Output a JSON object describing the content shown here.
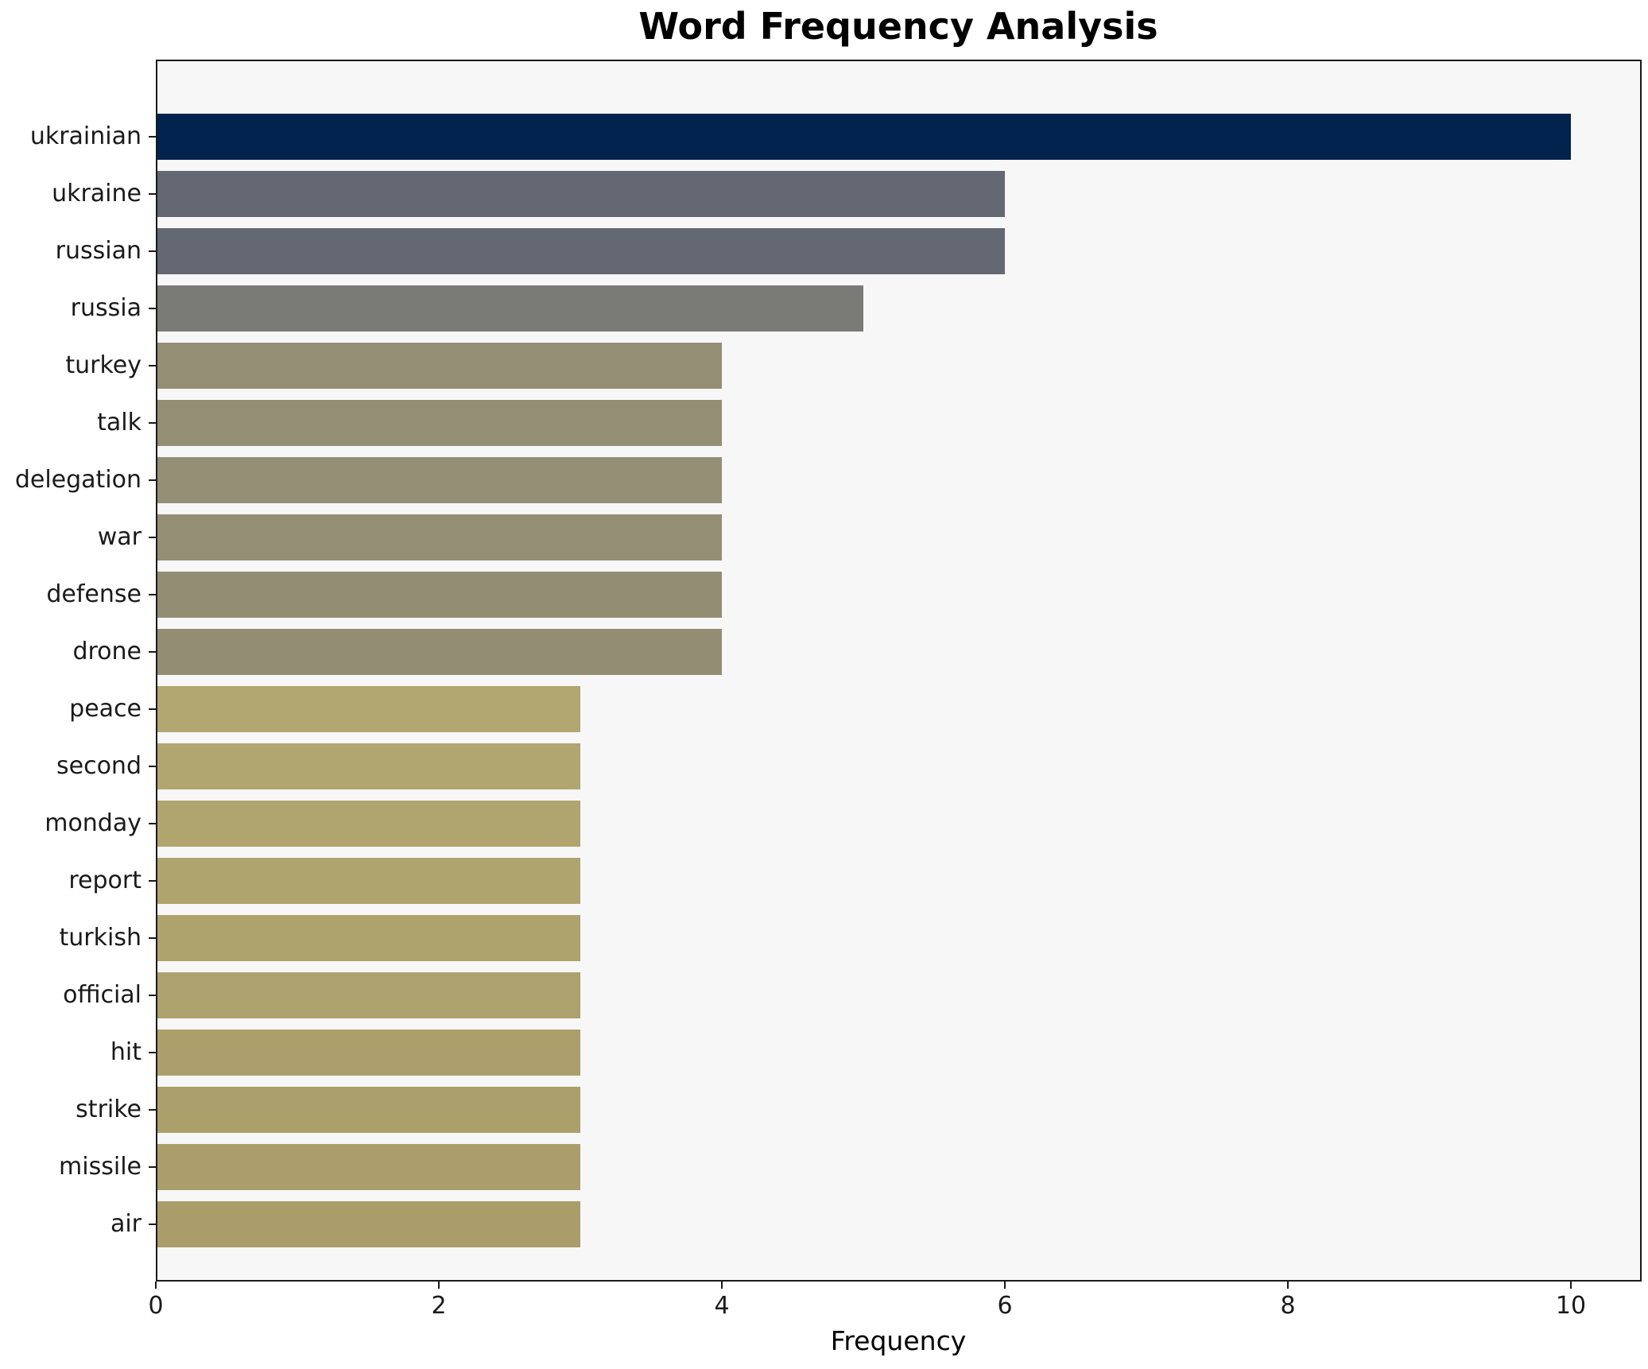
{
  "colors": {
    "figure_background": "#ffffff",
    "plot_background": "#f7f7f8",
    "axis": "#1a1a1a",
    "text": "#1a1a1a"
  },
  "chart_data": {
    "type": "bar",
    "orientation": "horizontal",
    "title": "Word Frequency Analysis",
    "xlabel": "Frequency",
    "ylabel": "",
    "categories": [
      "ukrainian",
      "ukraine",
      "russian",
      "russia",
      "turkey",
      "talk",
      "delegation",
      "war",
      "defense",
      "drone",
      "peace",
      "second",
      "monday",
      "report",
      "turkish",
      "official",
      "hit",
      "strike",
      "missile",
      "air"
    ],
    "values": [
      10,
      6,
      6,
      5,
      4,
      4,
      4,
      4,
      4,
      4,
      3,
      3,
      3,
      3,
      3,
      3,
      3,
      3,
      3,
      3
    ],
    "bar_colors": [
      "#02234d",
      "#646872",
      "#646872",
      "#7a7b77",
      "#948e75",
      "#948e75",
      "#948e75",
      "#948e75",
      "#938d74",
      "#938d74",
      "#b2a671",
      "#b1a570",
      "#b0a46f",
      "#afa36e",
      "#aea26d",
      "#ada16d",
      "#ac9f6c",
      "#ab9f6b",
      "#ab9e6b",
      "#aa9d6a"
    ],
    "xlim": [
      0,
      10.5
    ],
    "xticks": [
      0,
      2,
      4,
      6,
      8,
      10
    ],
    "grid": false,
    "legend": null
  }
}
